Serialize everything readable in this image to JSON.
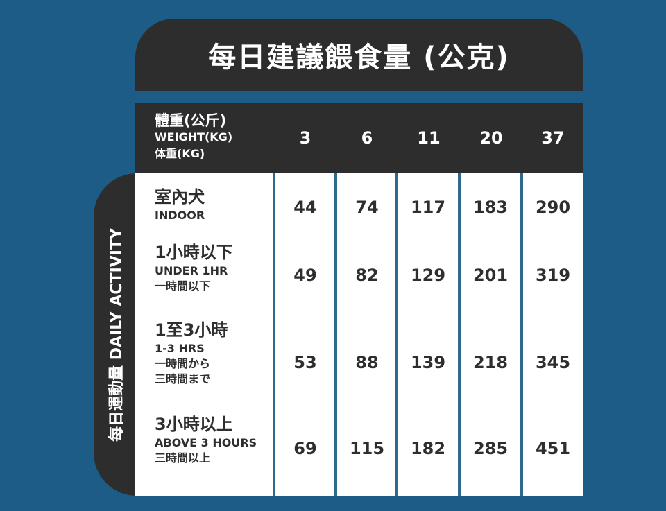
{
  "title": "每日建議餵食量 (公克)",
  "header": {
    "label_zh": "體重(公斤)",
    "label_en": "WEIGHT(KG)",
    "label_ja": "体重(KG)",
    "weights": [
      "3",
      "6",
      "11",
      "20",
      "37"
    ]
  },
  "side_label": "每日運動量 DAILY ACTIVITY",
  "rows": [
    {
      "zh": "室內犬",
      "en": "INDOOR",
      "ja": [
        "",
        ""
      ],
      "values": [
        "44",
        "74",
        "117",
        "183",
        "290"
      ]
    },
    {
      "zh": "1小時以下",
      "en": "UNDER 1HR",
      "ja": [
        "一時間以下",
        ""
      ],
      "values": [
        "49",
        "82",
        "129",
        "201",
        "319"
      ]
    },
    {
      "zh": "1至3小時",
      "en": "1-3 HRS",
      "ja": [
        "一時間から",
        "三時間まで"
      ],
      "values": [
        "53",
        "88",
        "139",
        "218",
        "345"
      ]
    },
    {
      "zh": "3小時以上",
      "en": "ABOVE 3 HOURS",
      "ja": [
        "三時間以上",
        ""
      ],
      "values": [
        "69",
        "115",
        "182",
        "285",
        "451"
      ]
    }
  ],
  "colors": {
    "background": "#1d5c87",
    "dark": "#2d2d2d",
    "cell": "#ffffff",
    "divider": "#2f6a8c"
  }
}
